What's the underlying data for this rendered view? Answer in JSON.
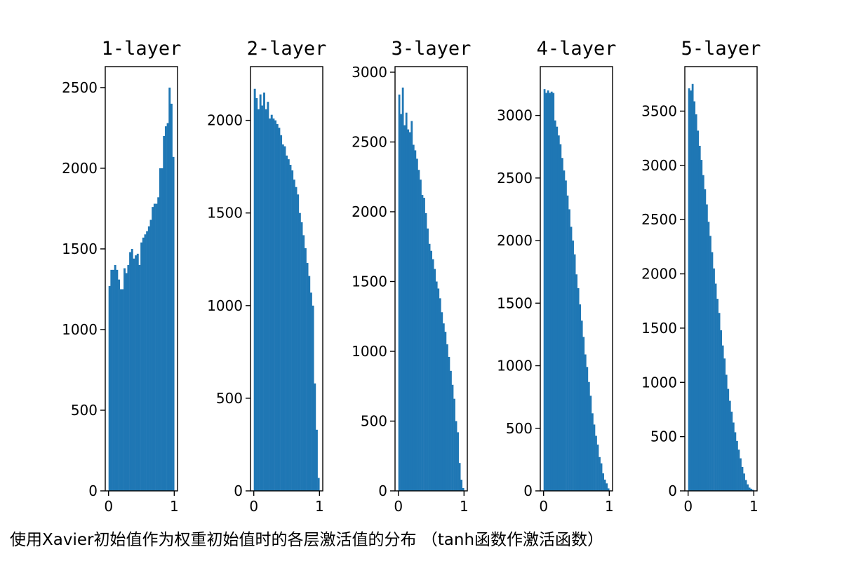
{
  "caption": "使用Xavier初始值作为权重初始值时的各层激活值的分布 （tanh函数作激活函数）",
  "colors": {
    "bar": "#1f77b4",
    "axes": "#000000",
    "background": "#ffffff"
  },
  "chart_data": [
    {
      "type": "bar",
      "title": "1-layer",
      "x_ticks": [
        "0",
        "1"
      ],
      "xlim": [
        -0.05,
        1.05
      ],
      "ylim": [
        0,
        2630
      ],
      "y_ticks": [
        0,
        500,
        1000,
        1500,
        2000,
        2500
      ],
      "bin_range": [
        0,
        1
      ],
      "values": [
        1270,
        1370,
        1370,
        1400,
        1370,
        1310,
        1250,
        1250,
        1380,
        1350,
        1400,
        1480,
        1500,
        1440,
        1460,
        1470,
        1400,
        1540,
        1570,
        1590,
        1610,
        1640,
        1680,
        1760,
        1780,
        1780,
        1820,
        2000,
        2000,
        2200,
        2260,
        2280,
        2500,
        2400,
        2070
      ]
    },
    {
      "type": "bar",
      "title": "2-layer",
      "x_ticks": [
        "0",
        "1"
      ],
      "xlim": [
        -0.05,
        1.05
      ],
      "ylim": [
        0,
        2290
      ],
      "y_ticks": [
        0,
        500,
        1000,
        1500,
        2000
      ],
      "bin_range": [
        0,
        1
      ],
      "values": [
        2170,
        2120,
        2060,
        2140,
        2080,
        2150,
        2060,
        2100,
        2010,
        2030,
        2010,
        2000,
        1980,
        1960,
        1920,
        1870,
        1860,
        1810,
        1790,
        1760,
        1730,
        1680,
        1640,
        1600,
        1500,
        1450,
        1380,
        1310,
        1230,
        1160,
        1070,
        1000,
        580,
        330,
        70
      ]
    },
    {
      "type": "bar",
      "title": "3-layer",
      "x_ticks": [
        "0",
        "1"
      ],
      "xlim": [
        -0.05,
        1.05
      ],
      "ylim": [
        0,
        3040
      ],
      "y_ticks": [
        0,
        500,
        1000,
        1500,
        2000,
        2500,
        3000
      ],
      "bin_range": [
        0,
        1
      ],
      "values": [
        2840,
        2700,
        2890,
        2620,
        2710,
        2590,
        2570,
        2650,
        2480,
        2440,
        2380,
        2300,
        2230,
        2120,
        2100,
        1990,
        1880,
        1770,
        1720,
        1660,
        1590,
        1500,
        1450,
        1380,
        1280,
        1200,
        1140,
        1050,
        960,
        860,
        760,
        660,
        500,
        420,
        200,
        80,
        20
      ]
    },
    {
      "type": "bar",
      "title": "4-layer",
      "x_ticks": [
        "0",
        "1"
      ],
      "xlim": [
        -0.05,
        1.05
      ],
      "ylim": [
        0,
        3390
      ],
      "y_ticks": [
        0,
        500,
        1000,
        1500,
        2000,
        2500,
        3000
      ],
      "bin_range": [
        0,
        1
      ],
      "values": [
        3210,
        3180,
        3200,
        3180,
        3190,
        3180,
        2960,
        2910,
        2840,
        2770,
        2660,
        2560,
        2480,
        2360,
        2250,
        2110,
        2000,
        1890,
        1730,
        1620,
        1490,
        1360,
        1230,
        1090,
        990,
        870,
        760,
        620,
        530,
        440,
        370,
        270,
        220,
        140,
        90,
        60,
        20
      ]
    },
    {
      "type": "bar",
      "title": "5-layer",
      "x_ticks": [
        "0",
        "1"
      ],
      "xlim": [
        -0.05,
        1.05
      ],
      "ylim": [
        0,
        3910
      ],
      "y_ticks": [
        0,
        500,
        1000,
        1500,
        2000,
        2500,
        3000,
        3500
      ],
      "bin_range": [
        0,
        1
      ],
      "values": [
        3710,
        3690,
        3750,
        3590,
        3470,
        3320,
        3180,
        3050,
        2910,
        2780,
        2640,
        2480,
        2350,
        2200,
        2050,
        1910,
        1770,
        1640,
        1480,
        1340,
        1220,
        1070,
        940,
        830,
        730,
        630,
        540,
        460,
        380,
        300,
        220,
        160,
        100,
        60,
        30,
        20,
        10
      ]
    }
  ]
}
